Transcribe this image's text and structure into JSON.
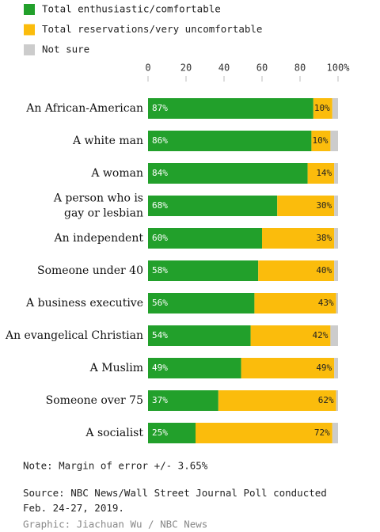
{
  "chart_data": {
    "type": "stacked-bar-horizontal",
    "categories": [
      "An African-American",
      "A white man",
      "A woman",
      "A person who is\ngay or lesbian",
      "An independent",
      "Someone under 40",
      "A business executive",
      "An evangelical Christian",
      "A Muslim",
      "Someone over 75",
      "A socialist"
    ],
    "series": [
      {
        "name": "Total enthusiastic/comfortable",
        "color": "#22a02b",
        "values": [
          87,
          86,
          84,
          68,
          60,
          58,
          56,
          54,
          49,
          37,
          25
        ],
        "value_labels": [
          "87%",
          "86%",
          "84%",
          "68%",
          "60%",
          "58%",
          "56%",
          "54%",
          "49%",
          "37%",
          "25%"
        ]
      },
      {
        "name": "Total reservations/very uncomfortable",
        "color": "#fbbc0c",
        "values": [
          10,
          10,
          14,
          30,
          38,
          40,
          43,
          42,
          49,
          62,
          72
        ],
        "value_labels": [
          "10%",
          "10%",
          "14%",
          "30%",
          "38%",
          "40%",
          "43%",
          "42%",
          "49%",
          "62%",
          "72%"
        ]
      },
      {
        "name": "Not sure",
        "color": "#cccccc",
        "values": [
          3,
          4,
          2,
          2,
          2,
          2,
          1,
          4,
          2,
          1,
          3
        ]
      }
    ],
    "xlim": [
      0,
      100
    ],
    "xticks": [
      0,
      20,
      40,
      60,
      80,
      {
        "value": 100,
        "label": "100%"
      }
    ],
    "note": "Note: Margin of error +/- 3.65%",
    "source": "Source: NBC News/Wall Street Journal Poll conducted\nFeb. 24-27, 2019.",
    "credit": "Graphic: Jiachuan Wu / NBC News"
  }
}
